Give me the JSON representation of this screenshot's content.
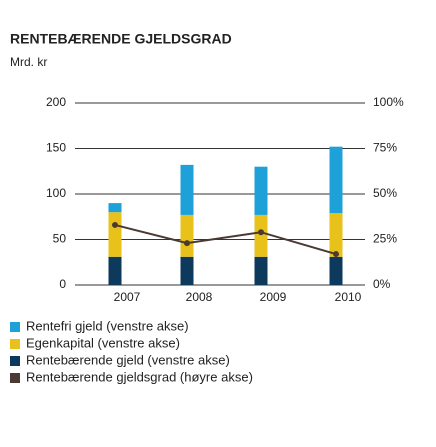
{
  "chart_data": {
    "type": "bar",
    "title": "RENTEBÆRENDE GJELDSGRAD",
    "subtitle": "Mrd. kr",
    "categories": [
      "2007",
      "2008",
      "2009",
      "2010"
    ],
    "stacked": true,
    "series": [
      {
        "name": "Rentebærende gjeld (venstre akse)",
        "color": "#0d3a5c",
        "values": [
          31,
          31,
          31,
          31
        ]
      },
      {
        "name": "Egenkapital (venstre akse)",
        "color": "#e8c21a",
        "values": [
          49,
          46,
          46,
          48
        ]
      },
      {
        "name": "Rentefri gjeld (venstre akse)",
        "color": "#1ea0d8",
        "values": [
          10,
          55,
          53,
          73
        ]
      },
      {
        "name": "Rentebærende gjeldsgrad (høyre akse)",
        "color": "#4a3a32",
        "type": "line",
        "axis": "y2",
        "values": [
          33,
          23,
          29,
          17
        ]
      }
    ],
    "legend_order": [
      2,
      1,
      0,
      3
    ],
    "ylim": [
      0,
      200
    ],
    "yticks": [
      0,
      50,
      100,
      150,
      200
    ],
    "y2lim": [
      0,
      100
    ],
    "y2ticks": [
      {
        "value": 0,
        "label": "0%"
      },
      {
        "value": 25,
        "label": "25%"
      },
      {
        "value": 50,
        "label": "50%"
      },
      {
        "value": 75,
        "label": "75%"
      },
      {
        "value": 100,
        "label": "100%"
      }
    ],
    "grid": true
  }
}
